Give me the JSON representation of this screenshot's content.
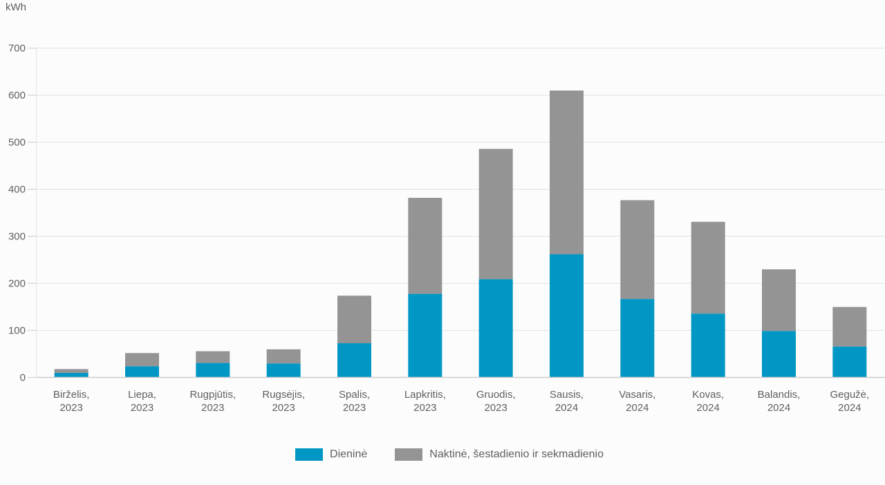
{
  "chart_data": {
    "type": "bar",
    "stacked": true,
    "title": "",
    "ylabel": "kWh",
    "xlabel": "",
    "ylim": [
      0,
      700
    ],
    "yticks": [
      0,
      100,
      200,
      300,
      400,
      500,
      600,
      700
    ],
    "grid": true,
    "legend_position": "bottom-center",
    "categories": [
      [
        "Birželis,",
        "2023"
      ],
      [
        "Liepa,",
        "2023"
      ],
      [
        "Rugpjūtis,",
        "2023"
      ],
      [
        "Rugsėjis,",
        "2023"
      ],
      [
        "Spalis,",
        "2023"
      ],
      [
        "Lapkritis,",
        "2023"
      ],
      [
        "Gruodis,",
        "2023"
      ],
      [
        "Sausis,",
        "2024"
      ],
      [
        "Vasaris,",
        "2024"
      ],
      [
        "Kovas,",
        "2024"
      ],
      [
        "Balandis,",
        "2024"
      ],
      [
        "Gegužė,",
        "2024"
      ]
    ],
    "series": [
      {
        "name": "Dieninė",
        "color": "#0097c4",
        "values": [
          9,
          23,
          30,
          29,
          72,
          177,
          208,
          261,
          166,
          135,
          98,
          65
        ]
      },
      {
        "name": "Naktinė, šestadienio ir sekmadienio",
        "color": "#949494",
        "values": [
          8,
          28,
          25,
          30,
          101,
          204,
          277,
          348,
          210,
          195,
          131,
          84
        ]
      }
    ]
  },
  "legend": {
    "items": [
      {
        "label": "Dieninė",
        "color": "#0097c4"
      },
      {
        "label": "Naktinė, šestadienio ir sekmadienio",
        "color": "#949494"
      }
    ]
  },
  "colors": {
    "background": "#fcfcfc",
    "grid": "#e3e3e3",
    "axis": "#cccccc",
    "text": "#5f5f5f"
  }
}
